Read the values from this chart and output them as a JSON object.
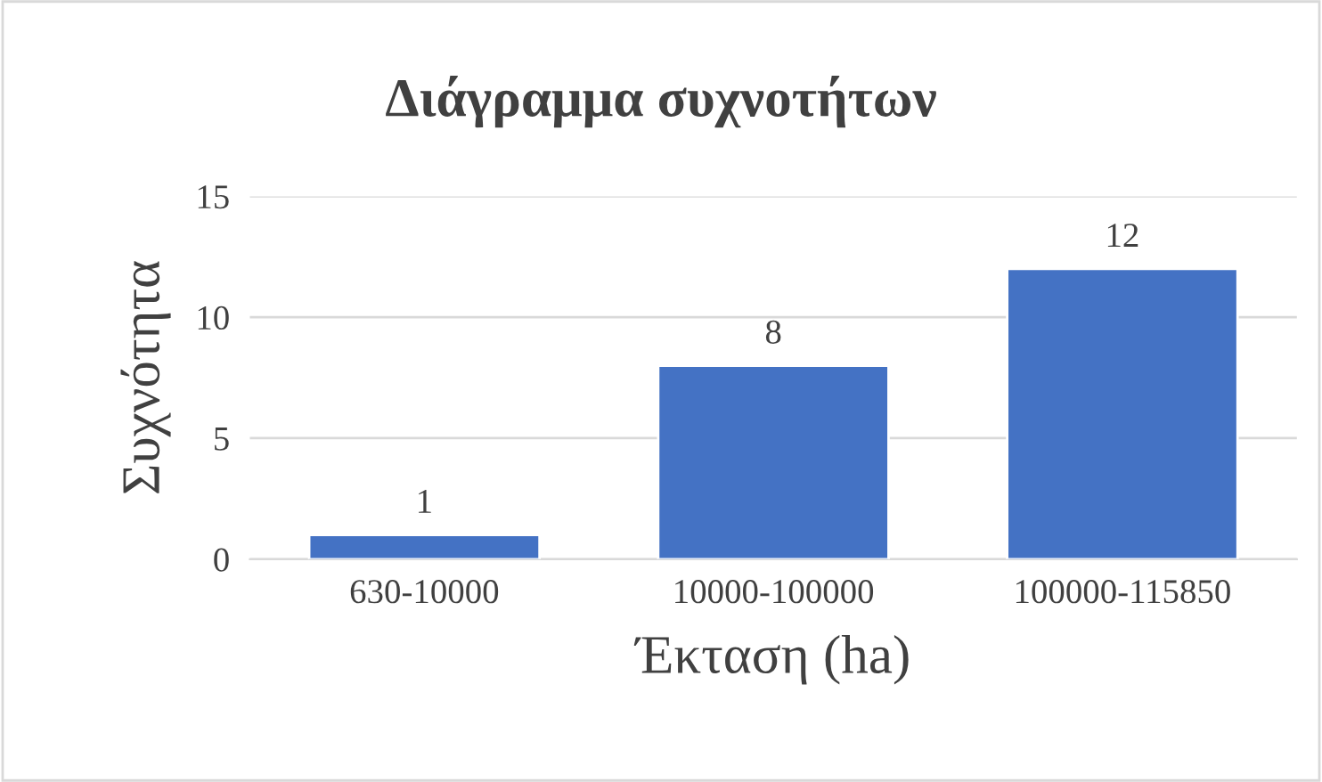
{
  "chart_data": {
    "type": "bar",
    "title": "Διάγραμμα συχνοτήτων",
    "xlabel": "Έκταση (ha)",
    "ylabel": "Συχνότητα",
    "categories": [
      "630-10000",
      "10000-100000",
      "100000-115850"
    ],
    "values": [
      1,
      8,
      12
    ],
    "color": "#4472c4",
    "ylim": [
      0,
      15
    ],
    "yticks": [
      0,
      5,
      10,
      15
    ],
    "grid": "y",
    "data_labels": true,
    "legend": false
  }
}
